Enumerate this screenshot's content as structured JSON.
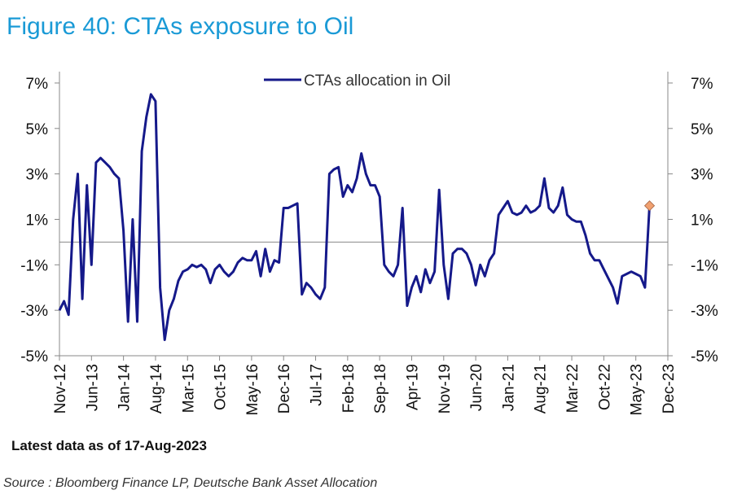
{
  "chart_data": {
    "type": "line",
    "title": "Figure 40: CTAs exposure to Oil",
    "note": "Latest data as of 17-Aug-2023",
    "source": "Source : Bloomberg Finance LP, Deutsche Bank Asset Allocation",
    "x": [
      "2012-11",
      "2012-12",
      "2013-01",
      "2013-02",
      "2013-03",
      "2013-04",
      "2013-05",
      "2013-06",
      "2013-07",
      "2013-08",
      "2013-09",
      "2013-10",
      "2013-11",
      "2013-12",
      "2014-01",
      "2014-02",
      "2014-03",
      "2014-04",
      "2014-05",
      "2014-06",
      "2014-07",
      "2014-08",
      "2014-09",
      "2014-10",
      "2014-11",
      "2014-12",
      "2015-01",
      "2015-02",
      "2015-03",
      "2015-04",
      "2015-05",
      "2015-06",
      "2015-07",
      "2015-08",
      "2015-09",
      "2015-10",
      "2015-11",
      "2015-12",
      "2016-01",
      "2016-02",
      "2016-03",
      "2016-04",
      "2016-05",
      "2016-06",
      "2016-07",
      "2016-08",
      "2016-09",
      "2016-10",
      "2016-11",
      "2016-12",
      "2017-01",
      "2017-02",
      "2017-03",
      "2017-04",
      "2017-05",
      "2017-06",
      "2017-07",
      "2017-08",
      "2017-09",
      "2017-10",
      "2017-11",
      "2017-12",
      "2018-01",
      "2018-02",
      "2018-03",
      "2018-04",
      "2018-05",
      "2018-06",
      "2018-07",
      "2018-08",
      "2018-09",
      "2018-10",
      "2018-11",
      "2018-12",
      "2019-01",
      "2019-02",
      "2019-03",
      "2019-04",
      "2019-05",
      "2019-06",
      "2019-07",
      "2019-08",
      "2019-09",
      "2019-10",
      "2019-11",
      "2019-12",
      "2020-01",
      "2020-02",
      "2020-03",
      "2020-04",
      "2020-05",
      "2020-06",
      "2020-07",
      "2020-08",
      "2020-09",
      "2020-10",
      "2020-11",
      "2020-12",
      "2021-01",
      "2021-02",
      "2021-03",
      "2021-04",
      "2021-05",
      "2021-06",
      "2021-07",
      "2021-08",
      "2021-09",
      "2021-10",
      "2021-11",
      "2021-12",
      "2022-01",
      "2022-02",
      "2022-03",
      "2022-04",
      "2022-05",
      "2022-06",
      "2022-07",
      "2022-08",
      "2022-09",
      "2022-10",
      "2022-11",
      "2022-12",
      "2023-01",
      "2023-02",
      "2023-03",
      "2023-04",
      "2023-05",
      "2023-06",
      "2023-07",
      "2023-08"
    ],
    "series": [
      {
        "name": "CTAs allocation in Oil",
        "color": "#15198a",
        "values": [
          -3.0,
          -2.6,
          -3.2,
          1.0,
          3.0,
          -2.5,
          2.5,
          -1.0,
          3.5,
          3.7,
          3.5,
          3.3,
          3.0,
          2.8,
          0.5,
          -3.5,
          1.0,
          -3.5,
          4.0,
          5.5,
          6.5,
          6.2,
          -2.0,
          -4.3,
          -3.0,
          -2.5,
          -1.7,
          -1.3,
          -1.2,
          -1.0,
          -1.1,
          -1.0,
          -1.2,
          -1.8,
          -1.2,
          -1.0,
          -1.3,
          -1.5,
          -1.3,
          -0.9,
          -0.7,
          -0.8,
          -0.8,
          -0.4,
          -1.5,
          -0.3,
          -1.3,
          -0.8,
          -0.9,
          1.5,
          1.5,
          1.6,
          1.7,
          -2.3,
          -1.8,
          -2.0,
          -2.3,
          -2.5,
          -2.0,
          3.0,
          3.2,
          3.3,
          2.0,
          2.5,
          2.2,
          2.8,
          3.9,
          3.0,
          2.5,
          2.5,
          2.0,
          -1.0,
          -1.3,
          -1.5,
          -1.0,
          1.5,
          -2.8,
          -2.0,
          -1.5,
          -2.2,
          -1.2,
          -1.8,
          -1.3,
          2.3,
          -1.0,
          -2.5,
          -0.5,
          -0.3,
          -0.3,
          -0.5,
          -1.0,
          -1.9,
          -1.0,
          -1.5,
          -0.8,
          -0.5,
          1.2,
          1.5,
          1.8,
          1.3,
          1.2,
          1.3,
          1.6,
          1.3,
          1.4,
          1.6,
          2.8,
          1.5,
          1.3,
          1.6,
          2.4,
          1.2,
          1.0,
          0.9,
          0.9,
          0.3,
          -0.5,
          -0.8,
          -0.8,
          -1.2,
          -1.6,
          -2.0,
          -2.7,
          -1.5,
          -1.4,
          -1.3,
          -1.4,
          -1.5,
          -2.0,
          1.6
        ]
      }
    ],
    "latest_marker_color": "#f0a070",
    "xlim": [
      "2012-11",
      "2023-12"
    ],
    "xticks": [
      {
        "value": "2012-11",
        "label": "Nov-12"
      },
      {
        "value": "2013-06",
        "label": "Jun-13"
      },
      {
        "value": "2014-01",
        "label": "Jan-14"
      },
      {
        "value": "2014-08",
        "label": "Aug-14"
      },
      {
        "value": "2015-03",
        "label": "Mar-15"
      },
      {
        "value": "2015-10",
        "label": "Oct-15"
      },
      {
        "value": "2016-05",
        "label": "May-16"
      },
      {
        "value": "2016-12",
        "label": "Dec-16"
      },
      {
        "value": "2017-07",
        "label": "Jul-17"
      },
      {
        "value": "2018-02",
        "label": "Feb-18"
      },
      {
        "value": "2018-09",
        "label": "Sep-18"
      },
      {
        "value": "2019-04",
        "label": "Apr-19"
      },
      {
        "value": "2019-11",
        "label": "Nov-19"
      },
      {
        "value": "2020-06",
        "label": "Jun-20"
      },
      {
        "value": "2021-01",
        "label": "Jan-21"
      },
      {
        "value": "2021-08",
        "label": "Aug-21"
      },
      {
        "value": "2022-03",
        "label": "Mar-22"
      },
      {
        "value": "2022-10",
        "label": "Oct-22"
      },
      {
        "value": "2023-05",
        "label": "May-23"
      },
      {
        "value": "2023-12",
        "label": "Dec-23"
      }
    ],
    "ylim": [
      -5,
      7.5
    ],
    "yticks": [
      {
        "value": -5,
        "label": "-5%"
      },
      {
        "value": -3,
        "label": "-3%"
      },
      {
        "value": -1,
        "label": "-1%"
      },
      {
        "value": 1,
        "label": "1%"
      },
      {
        "value": 3,
        "label": "3%"
      },
      {
        "value": 5,
        "label": "5%"
      },
      {
        "value": 7,
        "label": "7%"
      }
    ],
    "y2lim": [
      -5,
      7.5
    ],
    "y2ticks": [
      {
        "value": -5,
        "label": "-5%"
      },
      {
        "value": -3,
        "label": "-3%"
      },
      {
        "value": -1,
        "label": "-1%"
      },
      {
        "value": 1,
        "label": "1%"
      },
      {
        "value": 3,
        "label": "3%"
      },
      {
        "value": 5,
        "label": "5%"
      },
      {
        "value": 7,
        "label": "7%"
      }
    ],
    "zero_line": 0,
    "legend": "top"
  }
}
